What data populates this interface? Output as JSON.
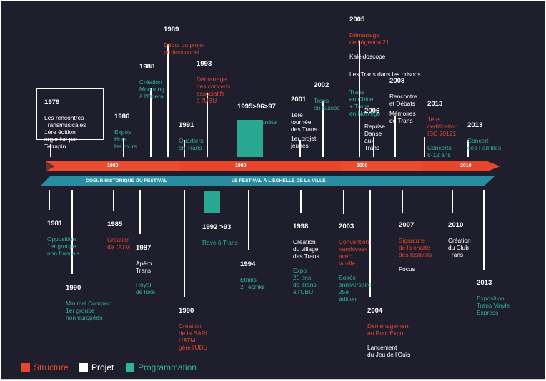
{
  "colors": {
    "structure": "#e8452c",
    "projet": "#ffffff",
    "programmation": "#2fb39c",
    "background": "#1f1e2c"
  },
  "timeline": {
    "ticks": [
      "1980",
      "1990",
      "2000",
      "2010"
    ],
    "bands": [
      "COEUR HISTORIQUE DU FESTIVAL",
      "LE FESTIVAL À L'ÉCHELLE DE LA VILLE"
    ]
  },
  "events_top": {
    "e1979": {
      "year": "1979",
      "text": "Les rencontres\nTransmusicales\n1ère édition\norganisé par\nTerrapin"
    },
    "e1986": {
      "year": "1986",
      "text": "Expos\nHors\nles murs"
    },
    "e1988": {
      "year": "1988",
      "text": "Création\nMoondog\nà l'Opéra"
    },
    "e1989": {
      "year": "1989",
      "text": "Début du projet\nprofessionnel"
    },
    "e1991": {
      "year": "1991",
      "text": "Quartiers\nen Trans"
    },
    "e1993": {
      "year": "1993",
      "text": "Démarrage\ndes concerts\nassociatifs\nà l'UBU"
    },
    "e1995": {
      "year": "1995>96>97",
      "text": "Soirée Planète\nL2 et 3"
    },
    "e2001": {
      "year": "2001",
      "text": "1ère\ntournée\ndes Trans",
      "text2": "1er projet\njeunes"
    },
    "e2002": {
      "year": "2002",
      "text": "Trans\nen Suisse"
    },
    "e2005": {
      "year": "2005",
      "text": "Démarrage\nde l'Agenda 21",
      "text2": "Kaléidoscope",
      "text3": "Les Trans dans les prisons",
      "text4": "Trans\nen Chine\n+ Trans\nen Norvège"
    },
    "e2006": {
      "year": "2006",
      "text": "Reprise\nDanse\naux\nTrans"
    },
    "e2008": {
      "year": "2008",
      "text": "Rencontre\net Débats",
      "text2": "Mémoires\nde Trans"
    },
    "e2013a": {
      "year": "2013",
      "text": "1ère\ncertification\nISO 20121",
      "text2": "Concerts\n8-12 ans"
    },
    "e2013b": {
      "year": "2013",
      "text": "Concert\ndes Familles"
    }
  },
  "events_bottom": {
    "e1981": {
      "year": "1981",
      "text": "Opposition\n1er groupe\nnon français"
    },
    "e1990a": {
      "year": "1990",
      "text": "Minimal Compact\n1er groupe\nnon européen"
    },
    "e1985": {
      "year": "1985",
      "text": "Création\nde l'ATM"
    },
    "e1987": {
      "year": "1987",
      "text": "Apéro\nTrans",
      "text2": "Royal\nde luxe"
    },
    "e1990b": {
      "year": "1990",
      "text": "Création\nde la SARL\nL'ATM\ngère l'UBU"
    },
    "e1992": {
      "year": "1992 >93",
      "text": "Rave ô Trans"
    },
    "e1994": {
      "year": "1994",
      "text": "Etniks\n2 Tecniks"
    },
    "e1998": {
      "year": "1998",
      "text": "Création\ndu village\ndes Trans",
      "text2": "Expo\n20 ans\nde Trans\nà l'UBU"
    },
    "e2003": {
      "year": "2003",
      "text": "Convention\n«archives»\navec\nla ville",
      "text2": "Soirée\nanniversaire\n25e\nédition"
    },
    "e2004": {
      "year": "2004",
      "text": "Déménagement\nau Parc Expo",
      "text2": "Lancement\ndu Jeu de l'Ouïs"
    },
    "e2007": {
      "year": "2007",
      "text": "Signature\nde la charte\ndes festivals",
      "text2": "Focus"
    },
    "e2010": {
      "year": "2010",
      "text": "Création\ndu Club\nTrans"
    },
    "e2013": {
      "year": "2013",
      "text": "Exposition\nTrans Vinyle\nExpress"
    }
  },
  "legend": {
    "structure": "Structure",
    "projet": "Projet",
    "programmation": "Programmation"
  }
}
